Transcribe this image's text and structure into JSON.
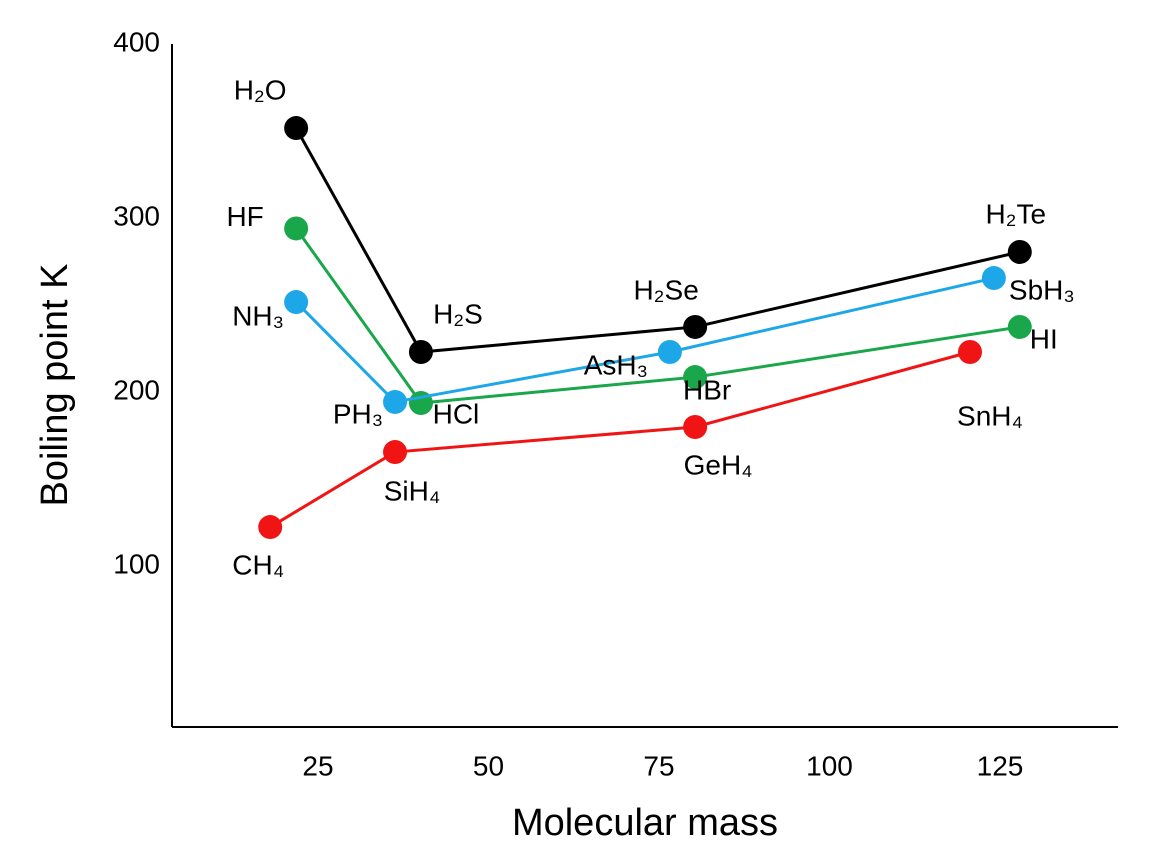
{
  "chart_data": {
    "type": "line",
    "x_label": "Molecular mass",
    "y_label": "Boiling point K",
    "xlim": [
      3.6,
      142.3
    ],
    "xticks": [
      25,
      50,
      75,
      100,
      125
    ],
    "ylim": [
      7.5,
      400
    ],
    "yticks": [
      100,
      200,
      300,
      400
    ],
    "series": [
      {
        "color": "#000000",
        "labels": [
          "H₂O",
          "H₂S",
          "H₂Se",
          "H₂Te"
        ],
        "x": [
          21.8,
          40.1,
          80.3,
          127.9
        ],
        "values": [
          351.7,
          223,
          237.4,
          280.5
        ]
      },
      {
        "color": "#1aa64a",
        "labels": [
          "HF",
          "HCl",
          "HBr",
          "HI"
        ],
        "x": [
          21.8,
          40.1,
          80.3,
          127.9
        ],
        "values": [
          294,
          193.7,
          208.6,
          237.4
        ]
      },
      {
        "color": "#1ea7e8",
        "labels": [
          "NH₃",
          "PH₃",
          "AsH₃",
          "SbH₃"
        ],
        "x": [
          21.8,
          36.3,
          76.6,
          124.1
        ],
        "values": [
          251.7,
          194.3,
          223,
          265.5
        ]
      },
      {
        "color": "#f01414",
        "labels": [
          "CH₄",
          "SiH₄",
          "GeH₄",
          "SnH₄"
        ],
        "x": [
          18.0,
          36.3,
          80.3,
          120.6
        ],
        "values": [
          122.4,
          165.5,
          179.9,
          223
        ]
      }
    ]
  }
}
